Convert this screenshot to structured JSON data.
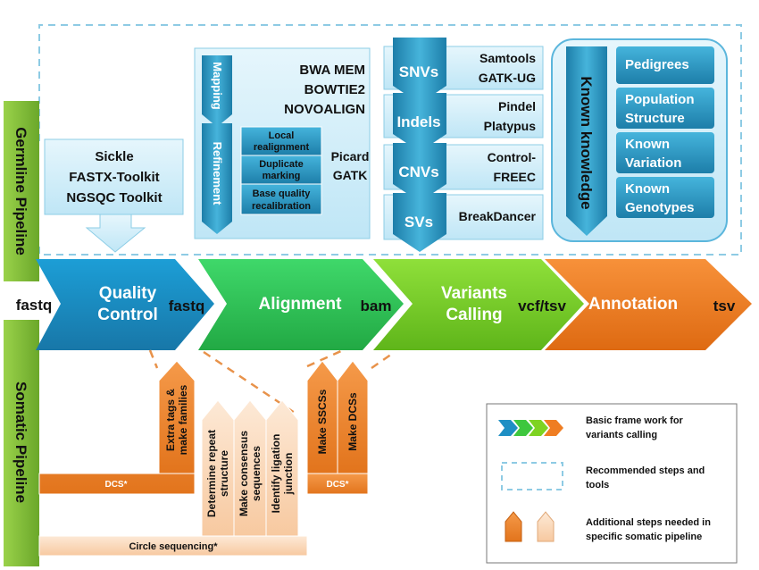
{
  "pipelines": {
    "germline": "Germline Pipeline",
    "somatic": "Somatic Pipeline"
  },
  "main_flow": {
    "input": "fastq",
    "stages": [
      {
        "name_line1": "Quality",
        "name_line2": "Control",
        "output": "fastq",
        "color": "#1e8fc4"
      },
      {
        "name_line1": "Alignment",
        "name_line2": "",
        "output": "bam",
        "color": "#3ec73e"
      },
      {
        "name_line1": "Variants",
        "name_line2": "Calling",
        "output": "vcf/tsv",
        "color": "#7ed321"
      },
      {
        "name_line1": "Annotation",
        "name_line2": "",
        "output": "tsv",
        "color": "#ef7d22"
      }
    ]
  },
  "qc_tools": [
    "Sickle",
    "FASTX-Toolkit",
    "NGSQC Toolkit"
  ],
  "alignment": {
    "mapping_label": "Mapping",
    "mapping_tools": [
      "BWA MEM",
      "BOWTIE2",
      "NOVOALIGN"
    ],
    "refinement_label": "Refinement",
    "refinement_steps": [
      [
        "Local",
        "realignment"
      ],
      [
        "Duplicate",
        "marking"
      ],
      [
        "Base quality",
        "recalibration"
      ]
    ],
    "refinement_tools": [
      "Picard",
      "GATK"
    ]
  },
  "variants": [
    {
      "label": "SNVs",
      "tools": [
        "Samtools",
        "GATK-UG"
      ]
    },
    {
      "label": "Indels",
      "tools": [
        "Pindel",
        "Platypus"
      ]
    },
    {
      "label": "CNVs",
      "tools": [
        "Control-",
        "FREEC"
      ]
    },
    {
      "label": "SVs",
      "tools": [
        "BreakDancer"
      ]
    }
  ],
  "known_knowledge": {
    "title": "Known knowledge",
    "items": [
      [
        "Pedigrees"
      ],
      [
        "Population",
        "Structure"
      ],
      [
        "Known",
        "Variation"
      ],
      [
        "Known",
        "Genotypes"
      ]
    ]
  },
  "somatic": {
    "dcs_bar_1": "DCS*",
    "dcs_bar_2": "DCS*",
    "circle_bar": "Circle sequencing*",
    "extra_tags": [
      "Extra tags &",
      "make families"
    ],
    "circle_steps": [
      [
        "Determine repeat",
        "structure"
      ],
      [
        "Make consensus",
        "sequences"
      ],
      [
        "Identify ligation",
        "junction"
      ]
    ],
    "dcs_steps": [
      [
        "Make SSCSs"
      ],
      [
        "Make DCSs"
      ]
    ]
  },
  "legend": {
    "items": [
      [
        "Basic frame work for",
        "variants calling"
      ],
      [
        "Recommended steps and",
        "tools"
      ],
      [
        "Additional steps needed in",
        "specific somatic pipeline"
      ]
    ]
  }
}
